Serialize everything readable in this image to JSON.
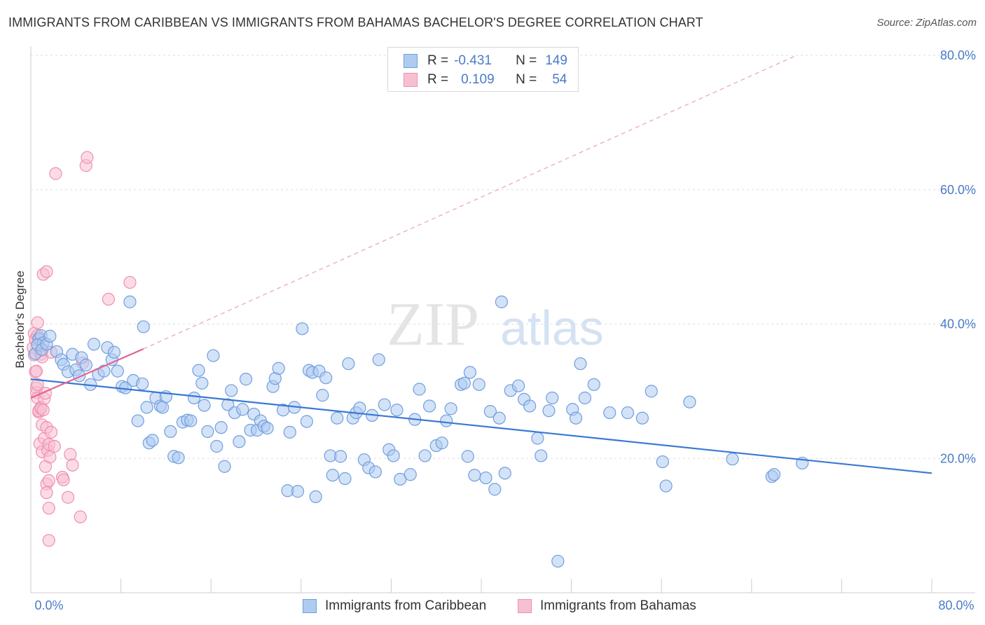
{
  "header": {
    "title": "IMMIGRANTS FROM CARIBBEAN VS IMMIGRANTS FROM BAHAMAS BACHELOR'S DEGREE CORRELATION CHART",
    "source": "Source: ZipAtlas.com"
  },
  "watermark": {
    "zip": "ZIP",
    "atlas": "atlas"
  },
  "legend": {
    "r_label": "R =",
    "n_label": "N =",
    "rows": [
      {
        "r": "-0.431",
        "n": "149",
        "color": "#6f9fe0"
      },
      {
        "r": "0.109",
        "n": "54",
        "color": "#f08fb0"
      }
    ]
  },
  "chart_data": {
    "type": "scatter",
    "title": "IMMIGRANTS FROM CARIBBEAN VS IMMIGRANTS FROM BAHAMAS BACHELOR'S DEGREE CORRELATION CHART",
    "xlabel": "",
    "ylabel": "Bachelor's Degree",
    "xlim": [
      0,
      80
    ],
    "ylim": [
      0,
      80
    ],
    "x_tick_labels": [
      "0.0%",
      "80.0%"
    ],
    "y_ticks": [
      {
        "value": 20,
        "label": "20.0%"
      },
      {
        "value": 40,
        "label": "40.0%"
      },
      {
        "value": 60,
        "label": "60.0%"
      },
      {
        "value": 80,
        "label": "80.0%"
      }
    ],
    "grid": true,
    "legend_position": "bottom",
    "series": [
      {
        "name": "Immigrants from Caribbean",
        "color": "#6f9fe0",
        "fill": "#aecbf0",
        "trend": {
          "x": [
            0,
            80
          ],
          "y": [
            31.8,
            17.8
          ],
          "style": "solid"
        },
        "points": [
          [
            0.4,
            35.6
          ],
          [
            0.7,
            37.8
          ],
          [
            0.9,
            38.3
          ],
          [
            1.1,
            37.2
          ],
          [
            0.6,
            36.9
          ],
          [
            1.0,
            36.2
          ],
          [
            1.4,
            37.0
          ],
          [
            1.7,
            38.2
          ],
          [
            2.3,
            35.9
          ],
          [
            2.7,
            34.7
          ],
          [
            2.9,
            34.0
          ],
          [
            3.3,
            32.9
          ],
          [
            3.7,
            35.5
          ],
          [
            4.0,
            33.2
          ],
          [
            4.3,
            32.3
          ],
          [
            4.5,
            35.0
          ],
          [
            4.9,
            33.9
          ],
          [
            5.3,
            31.0
          ],
          [
            5.6,
            37.0
          ],
          [
            6.0,
            32.5
          ],
          [
            6.5,
            33.0
          ],
          [
            6.8,
            36.5
          ],
          [
            7.2,
            34.7
          ],
          [
            7.4,
            35.8
          ],
          [
            7.7,
            33.0
          ],
          [
            8.1,
            30.7
          ],
          [
            8.4,
            30.5
          ],
          [
            8.8,
            43.3
          ],
          [
            9.1,
            31.6
          ],
          [
            9.5,
            25.6
          ],
          [
            9.9,
            31.1
          ],
          [
            10.0,
            39.6
          ],
          [
            10.3,
            27.6
          ],
          [
            10.5,
            22.3
          ],
          [
            10.8,
            22.7
          ],
          [
            11.1,
            29.0
          ],
          [
            11.5,
            27.8
          ],
          [
            11.7,
            27.6
          ],
          [
            12.0,
            29.2
          ],
          [
            12.4,
            24.0
          ],
          [
            12.7,
            20.3
          ],
          [
            13.1,
            20.1
          ],
          [
            13.5,
            25.4
          ],
          [
            13.9,
            25.7
          ],
          [
            14.2,
            25.6
          ],
          [
            14.5,
            29.0
          ],
          [
            14.9,
            33.1
          ],
          [
            15.2,
            31.2
          ],
          [
            15.4,
            27.9
          ],
          [
            15.7,
            24.0
          ],
          [
            16.2,
            35.3
          ],
          [
            16.5,
            21.8
          ],
          [
            16.9,
            24.6
          ],
          [
            17.2,
            18.8
          ],
          [
            17.5,
            28.0
          ],
          [
            17.8,
            30.1
          ],
          [
            18.1,
            26.8
          ],
          [
            18.5,
            22.5
          ],
          [
            18.8,
            27.3
          ],
          [
            19.1,
            31.8
          ],
          [
            19.5,
            24.2
          ],
          [
            19.8,
            26.6
          ],
          [
            20.1,
            24.2
          ],
          [
            20.4,
            25.6
          ],
          [
            20.7,
            24.8
          ],
          [
            21.0,
            24.5
          ],
          [
            21.5,
            30.7
          ],
          [
            21.7,
            31.9
          ],
          [
            22.0,
            33.4
          ],
          [
            22.4,
            27.2
          ],
          [
            22.8,
            15.2
          ],
          [
            23.0,
            23.9
          ],
          [
            23.4,
            27.6
          ],
          [
            23.7,
            15.1
          ],
          [
            24.1,
            39.3
          ],
          [
            24.5,
            25.5
          ],
          [
            24.7,
            33.1
          ],
          [
            25.0,
            32.8
          ],
          [
            25.3,
            14.3
          ],
          [
            25.6,
            33.0
          ],
          [
            25.9,
            29.4
          ],
          [
            26.2,
            32.0
          ],
          [
            26.6,
            20.4
          ],
          [
            26.8,
            17.5
          ],
          [
            27.2,
            26.0
          ],
          [
            27.5,
            20.3
          ],
          [
            27.9,
            17.0
          ],
          [
            28.2,
            34.1
          ],
          [
            28.6,
            26.0
          ],
          [
            28.9,
            26.8
          ],
          [
            29.2,
            27.5
          ],
          [
            29.6,
            19.8
          ],
          [
            30.0,
            18.6
          ],
          [
            30.3,
            26.4
          ],
          [
            30.6,
            18.0
          ],
          [
            30.9,
            34.7
          ],
          [
            31.4,
            28.0
          ],
          [
            31.8,
            21.3
          ],
          [
            32.2,
            20.4
          ],
          [
            32.5,
            27.2
          ],
          [
            32.8,
            16.9
          ],
          [
            33.7,
            17.6
          ],
          [
            34.1,
            25.8
          ],
          [
            34.5,
            30.3
          ],
          [
            35.0,
            20.4
          ],
          [
            35.4,
            27.8
          ],
          [
            36.0,
            21.9
          ],
          [
            36.5,
            22.3
          ],
          [
            36.9,
            25.6
          ],
          [
            37.3,
            27.4
          ],
          [
            38.2,
            31.0
          ],
          [
            38.5,
            31.2
          ],
          [
            38.8,
            20.3
          ],
          [
            39.0,
            32.8
          ],
          [
            39.4,
            17.5
          ],
          [
            39.8,
            31.0
          ],
          [
            40.4,
            17.1
          ],
          [
            40.8,
            27.0
          ],
          [
            41.2,
            15.4
          ],
          [
            41.6,
            26.0
          ],
          [
            41.8,
            43.3
          ],
          [
            42.1,
            17.8
          ],
          [
            42.6,
            30.1
          ],
          [
            43.3,
            30.8
          ],
          [
            43.8,
            28.8
          ],
          [
            44.3,
            27.8
          ],
          [
            45.0,
            23.0
          ],
          [
            45.3,
            20.4
          ],
          [
            46.0,
            27.1
          ],
          [
            46.3,
            29.0
          ],
          [
            46.8,
            4.7
          ],
          [
            48.1,
            27.3
          ],
          [
            48.4,
            26.0
          ],
          [
            48.8,
            34.1
          ],
          [
            49.2,
            29.0
          ],
          [
            50.0,
            31.0
          ],
          [
            51.4,
            26.8
          ],
          [
            53.0,
            26.8
          ],
          [
            54.3,
            26.0
          ],
          [
            55.1,
            30.0
          ],
          [
            56.1,
            19.5
          ],
          [
            56.4,
            15.9
          ],
          [
            58.5,
            28.4
          ],
          [
            62.3,
            19.9
          ],
          [
            65.8,
            17.3
          ],
          [
            66.0,
            17.6
          ],
          [
            68.5,
            19.3
          ]
        ]
      },
      {
        "name": "Immigrants from Bahamas",
        "color": "#f08fb0",
        "fill": "#f7c0d2",
        "trend": {
          "x": [
            0,
            10
          ],
          "y": [
            29.0,
            36.3
          ],
          "style": "solid",
          "extended_x": [
            10,
            68
          ],
          "extended_y": [
            36.3,
            80.0
          ]
        },
        "points": [
          [
            0.2,
            36.5
          ],
          [
            0.3,
            38.6
          ],
          [
            0.3,
            35.4
          ],
          [
            0.4,
            37.7
          ],
          [
            0.4,
            32.9
          ],
          [
            0.5,
            30.5
          ],
          [
            0.5,
            29.8
          ],
          [
            0.6,
            31.0
          ],
          [
            0.6,
            29.0
          ],
          [
            0.6,
            38.3
          ],
          [
            0.6,
            40.2
          ],
          [
            0.7,
            26.9
          ],
          [
            0.7,
            27.1
          ],
          [
            0.8,
            22.2
          ],
          [
            0.8,
            37.8
          ],
          [
            0.9,
            27.6
          ],
          [
            0.9,
            27.4
          ],
          [
            0.9,
            36.0
          ],
          [
            0.9,
            35.5
          ],
          [
            1.0,
            35.1
          ],
          [
            1.0,
            21.0
          ],
          [
            1.0,
            25.0
          ],
          [
            1.1,
            47.4
          ],
          [
            1.2,
            28.9
          ],
          [
            1.2,
            23.0
          ],
          [
            1.3,
            29.7
          ],
          [
            1.3,
            18.8
          ],
          [
            1.4,
            16.2
          ],
          [
            1.4,
            14.9
          ],
          [
            1.4,
            47.8
          ],
          [
            1.4,
            24.6
          ],
          [
            1.5,
            21.2
          ],
          [
            1.6,
            16.7
          ],
          [
            1.6,
            12.6
          ],
          [
            1.6,
            22.1
          ],
          [
            1.6,
            7.8
          ],
          [
            1.7,
            20.2
          ],
          [
            1.8,
            23.9
          ],
          [
            1.8,
            35.8
          ],
          [
            2.1,
            21.8
          ],
          [
            2.2,
            62.4
          ],
          [
            2.8,
            17.2
          ],
          [
            2.9,
            16.8
          ],
          [
            3.3,
            14.2
          ],
          [
            3.5,
            20.6
          ],
          [
            3.7,
            19.0
          ],
          [
            4.4,
            11.3
          ],
          [
            4.6,
            34.2
          ],
          [
            4.9,
            63.6
          ],
          [
            5.0,
            64.8
          ],
          [
            6.9,
            43.7
          ],
          [
            8.8,
            46.2
          ],
          [
            1.1,
            27.2
          ],
          [
            0.5,
            33.0
          ]
        ]
      }
    ]
  }
}
